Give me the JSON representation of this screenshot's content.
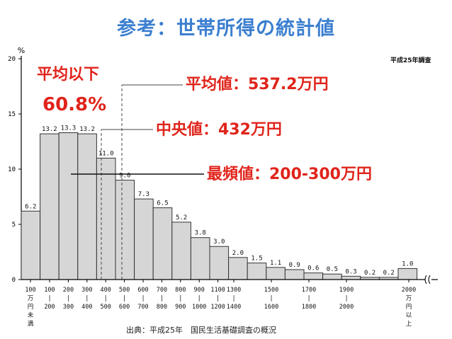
{
  "page": {
    "title": "参考：世帯所得の統計値",
    "source": "出典：平成25年　国民生活基礎調査の概況",
    "survey_label": "平成25年調査"
  },
  "annotations": {
    "below_avg_label": "平均以下",
    "below_avg_value": "60.8%",
    "mean": "平均値：537.2万円",
    "median": "中央値：432万円",
    "mode": "最頻値：200-300万円"
  },
  "colors": {
    "title": "#3b7fd0",
    "annotation": "#e0241b",
    "bar_fill": "#d6d6d6",
    "bar_stroke": "#333333"
  },
  "chart_data": {
    "type": "bar",
    "yunit": "%",
    "ylim": [
      0,
      20
    ],
    "yticks": [
      "0",
      "5",
      "10",
      "15",
      "20"
    ],
    "values": [
      6.2,
      13.2,
      13.3,
      13.2,
      11.0,
      9.0,
      7.3,
      6.5,
      5.2,
      3.8,
      3.0,
      2.0,
      1.5,
      1.1,
      0.9,
      0.6,
      0.5,
      0.3,
      0.2,
      0.2,
      1.0
    ],
    "value_labels": [
      "6.2",
      "13.2",
      "13.3",
      "13.2",
      "11.0",
      "9.0",
      "7.3",
      "6.5",
      "5.2",
      "3.8",
      "3.0",
      "2.0",
      "1.5",
      "1.1",
      "0.9",
      "0.6",
      "0.5",
      "0.3",
      "0.2",
      "0.2",
      "1.0"
    ],
    "category_labels": [
      [
        "100",
        "万",
        "円",
        "未",
        "満"
      ],
      [
        "100",
        "|",
        "200"
      ],
      [
        "200",
        "|",
        "300"
      ],
      [
        "300",
        "|",
        "400"
      ],
      [
        "400",
        "|",
        "500"
      ],
      [
        "500",
        "|",
        "600"
      ],
      [
        "600",
        "|",
        "700"
      ],
      [
        "700",
        "|",
        "800"
      ],
      [
        "800",
        "|",
        "900"
      ],
      [
        "900",
        "|",
        "1000"
      ],
      [
        "1100",
        "|",
        "1200"
      ],
      [
        "1300",
        "|",
        "1400"
      ],
      [
        "1500",
        "|",
        "1600"
      ],
      [
        "1700",
        "|",
        "1800"
      ],
      [
        "1900",
        "|",
        "2000"
      ],
      [
        "2000",
        "万",
        "円",
        "以",
        "上"
      ]
    ],
    "grid": false
  }
}
